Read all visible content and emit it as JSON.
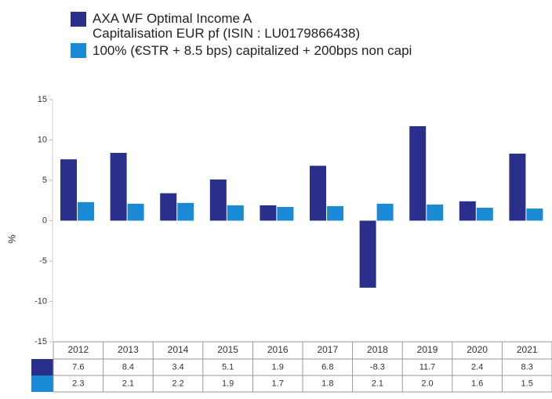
{
  "chart_data": {
    "type": "bar",
    "y_label": "%",
    "categories": [
      "2012",
      "2013",
      "2014",
      "2015",
      "2016",
      "2017",
      "2018",
      "2019",
      "2020",
      "2021"
    ],
    "series": [
      {
        "name": "AXA WF Optimal Income A\nCapitalisation EUR pf (ISIN : LU0179866438)",
        "color": "#2b2f8c",
        "values": [
          7.6,
          8.4,
          3.4,
          5.1,
          1.9,
          6.8,
          -8.3,
          11.7,
          2.4,
          8.3
        ],
        "value_labels": [
          "7.6",
          "8.4",
          "3.4",
          "5.1",
          "1.9",
          "6.8",
          "-8.3",
          "11.7",
          "2.4",
          "8.3"
        ]
      },
      {
        "name": "100% (€STR + 8.5 bps) capitalized + 200bps non capi",
        "color": "#1a8ad4",
        "values": [
          2.3,
          2.1,
          2.2,
          1.9,
          1.7,
          1.8,
          2.1,
          2.0,
          1.6,
          1.5
        ],
        "value_labels": [
          "2.3",
          "2.1",
          "2.2",
          "1.9",
          "1.7",
          "1.8",
          "2.1",
          "2.0",
          "1.6",
          "1.5"
        ]
      }
    ],
    "ylim": [
      -15,
      15
    ],
    "yticks": [
      -15,
      -10,
      -5,
      0,
      5,
      10,
      15
    ]
  }
}
